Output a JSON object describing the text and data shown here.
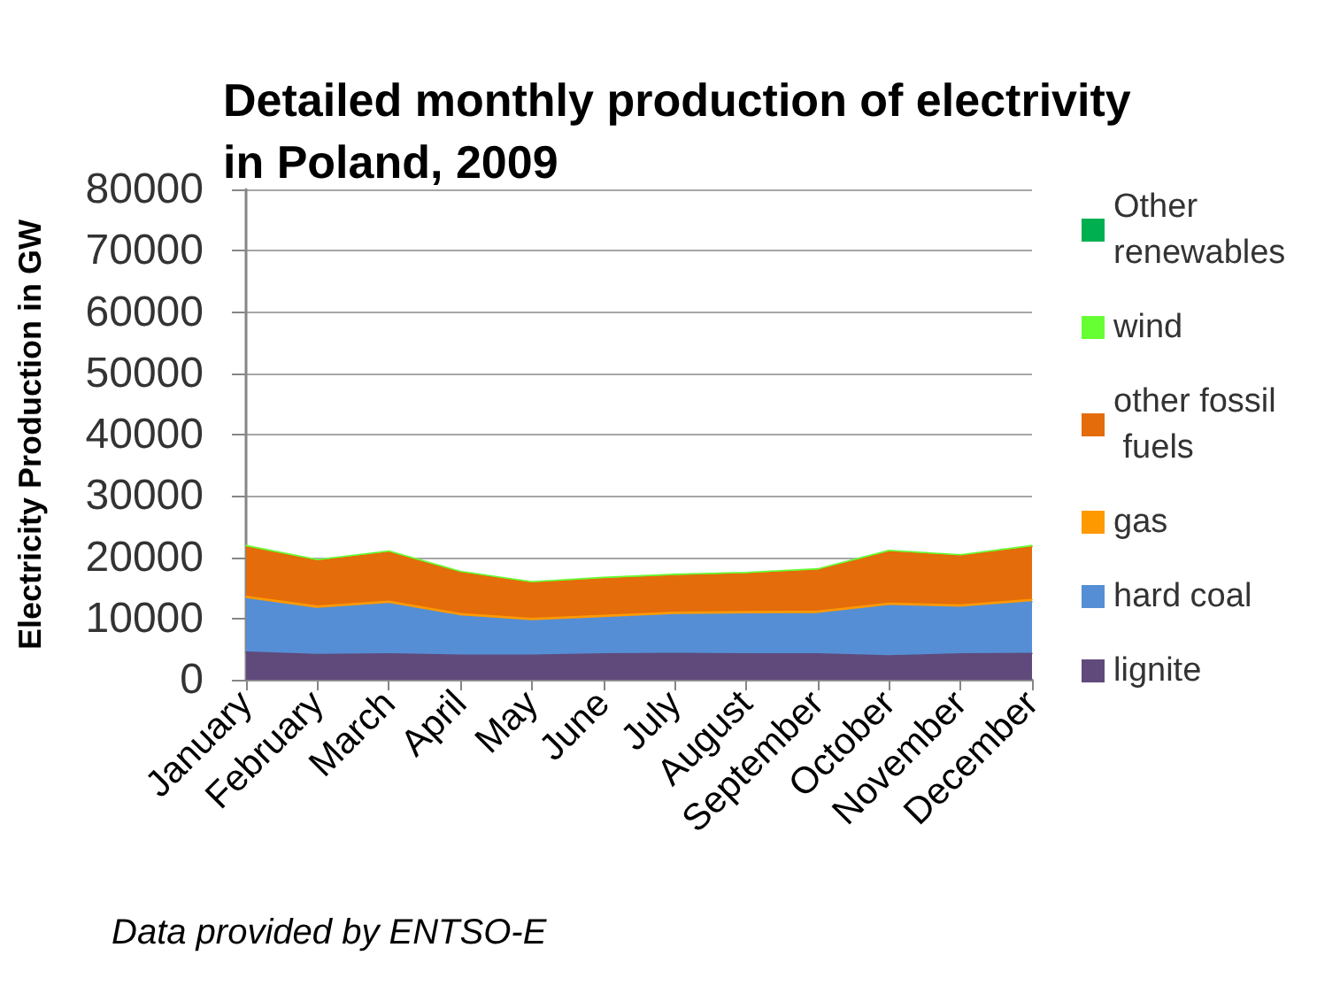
{
  "chart_data": {
    "type": "area",
    "title": "Detailed monthly production of electrivity in Poland, 2009",
    "ylabel": "Electricity Production in GW",
    "annotations": [
      "Data provided by ENTSO-E"
    ],
    "categories": [
      "January",
      "February",
      "March",
      "April",
      "May",
      "June",
      "July",
      "August",
      "September",
      "October",
      "November",
      "December"
    ],
    "stacked": true,
    "series": [
      {
        "name": "lignite",
        "color": "#604a7b",
        "values": [
          4500,
          4100,
          4200,
          4000,
          4000,
          4200,
          4300,
          4200,
          4200,
          3900,
          4200,
          4300
        ]
      },
      {
        "name": "hard coal",
        "color": "#558ed5",
        "values": [
          8700,
          7500,
          8200,
          6400,
          5600,
          5900,
          6300,
          6500,
          6600,
          8200,
          7600,
          8400
        ]
      },
      {
        "name": "gas",
        "color": "#ff9900",
        "values": [
          400,
          400,
          400,
          400,
          400,
          400,
          400,
          400,
          400,
          400,
          400,
          400
        ]
      },
      {
        "name": "other fossil fuels",
        "color": "#e46c0a",
        "values": [
          8100,
          7400,
          8000,
          6700,
          5800,
          6000,
          6000,
          6200,
          6700,
          8400,
          8000,
          8600
        ]
      },
      {
        "name": "wind",
        "color": "#66ff33",
        "values": [
          200,
          200,
          200,
          200,
          200,
          200,
          200,
          200,
          200,
          200,
          200,
          200
        ]
      },
      {
        "name": "Other renewables",
        "color": "#00b050",
        "values": [
          null,
          null,
          null,
          null,
          null,
          null,
          null,
          null,
          null,
          null,
          null,
          null
        ]
      }
    ],
    "ylim": [
      0,
      80000
    ],
    "yticks": [
      0,
      10000,
      20000,
      30000,
      40000,
      50000,
      60000,
      70000,
      80000
    ],
    "grid": "y",
    "legend": "right"
  }
}
